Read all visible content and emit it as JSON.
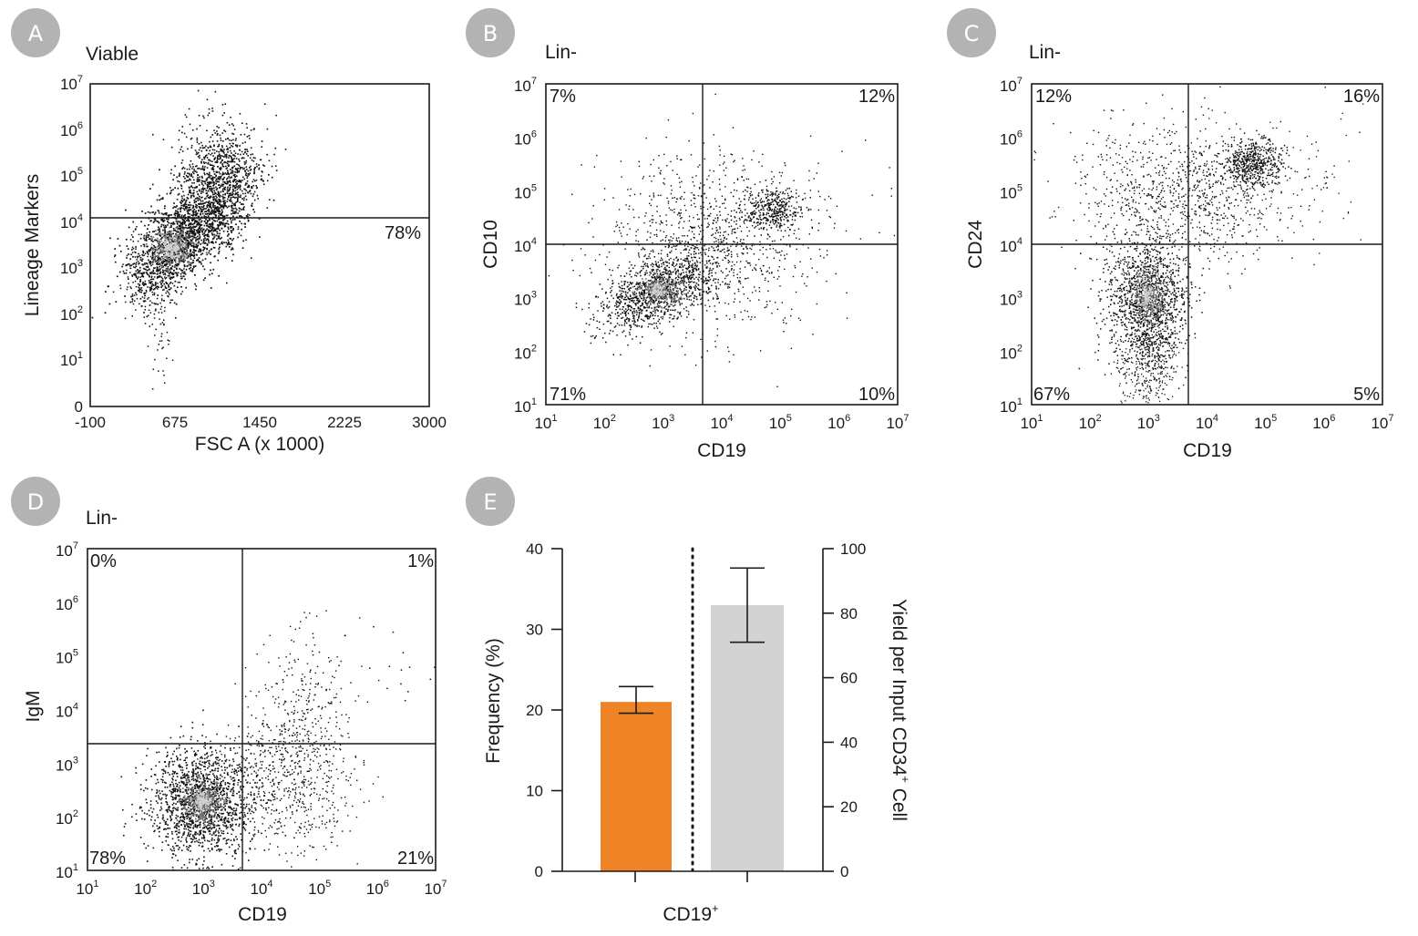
{
  "colors": {
    "badge": "#b3b3b3",
    "axis": "#1a1a1a",
    "orange": "#ee8426",
    "gray": "#d3d3d3"
  },
  "chart_data": [
    {
      "id": "A",
      "type": "scatter",
      "panel_label": "A",
      "title": "Viable",
      "xlabel": "FSC A (x 1000)",
      "ylabel": "Lineage Markers",
      "x_ticks": [
        "-100",
        "675",
        "1450",
        "2225",
        "3000"
      ],
      "y_ticks": [
        {
          "base": "0",
          "exp": ""
        },
        {
          "base": "10",
          "exp": "1"
        },
        {
          "base": "10",
          "exp": "2"
        },
        {
          "base": "10",
          "exp": "3"
        },
        {
          "base": "10",
          "exp": "4"
        },
        {
          "base": "10",
          "exp": "5"
        },
        {
          "base": "10",
          "exp": "6"
        },
        {
          "base": "10",
          "exp": "7"
        }
      ],
      "xlim": [
        -100,
        3000
      ],
      "ylim_log10": [
        0,
        7
      ],
      "gate_y": 4.08,
      "gate_labels": [
        "78%"
      ]
    },
    {
      "id": "B",
      "type": "scatter",
      "panel_label": "B",
      "title": "Lin-",
      "xlabel": "CD19",
      "ylabel": "CD10",
      "ticks": [
        {
          "base": "10",
          "exp": "1"
        },
        {
          "base": "10",
          "exp": "2"
        },
        {
          "base": "10",
          "exp": "3"
        },
        {
          "base": "10",
          "exp": "4"
        },
        {
          "base": "10",
          "exp": "5"
        },
        {
          "base": "10",
          "exp": "6"
        },
        {
          "base": "10",
          "exp": "7"
        }
      ],
      "xlim_log10": [
        1,
        7
      ],
      "ylim_log10": [
        1,
        7
      ],
      "gate_x": 3.65,
      "gate_y": 4.0,
      "quadrants": {
        "upper_left": "7%",
        "upper_right": "12%",
        "lower_left": "71%",
        "lower_right": "10%"
      }
    },
    {
      "id": "C",
      "type": "scatter",
      "panel_label": "C",
      "title": "Lin-",
      "xlabel": "CD19",
      "ylabel": "CD24",
      "ticks": [
        {
          "base": "10",
          "exp": "1"
        },
        {
          "base": "10",
          "exp": "2"
        },
        {
          "base": "10",
          "exp": "3"
        },
        {
          "base": "10",
          "exp": "4"
        },
        {
          "base": "10",
          "exp": "5"
        },
        {
          "base": "10",
          "exp": "6"
        },
        {
          "base": "10",
          "exp": "7"
        }
      ],
      "xlim_log10": [
        1,
        7
      ],
      "ylim_log10": [
        1,
        7
      ],
      "gate_x": 3.65,
      "gate_y": 4.0,
      "quadrants": {
        "upper_left": "12%",
        "upper_right": "16%",
        "lower_left": "67%",
        "lower_right": "5%"
      }
    },
    {
      "id": "D",
      "type": "scatter",
      "panel_label": "D",
      "title": "Lin-",
      "xlabel": "CD19",
      "ylabel": "IgM",
      "ticks": [
        {
          "base": "10",
          "exp": "1"
        },
        {
          "base": "10",
          "exp": "2"
        },
        {
          "base": "10",
          "exp": "3"
        },
        {
          "base": "10",
          "exp": "4"
        },
        {
          "base": "10",
          "exp": "5"
        },
        {
          "base": "10",
          "exp": "6"
        },
        {
          "base": "10",
          "exp": "7"
        }
      ],
      "xlim_log10": [
        1,
        7
      ],
      "ylim_log10": [
        1,
        7
      ],
      "gate_x": 3.65,
      "gate_y": 3.35,
      "quadrants": {
        "upper_left": "0%",
        "upper_right": "1%",
        "lower_left": "78%",
        "lower_right": "21%"
      }
    },
    {
      "id": "E",
      "type": "bar",
      "panel_label": "E",
      "category": "CD19",
      "category_sup": "+",
      "left_axis": {
        "label": "Frequency (%)",
        "ticks": [
          "0",
          "10",
          "20",
          "30",
          "40"
        ],
        "ylim": [
          0,
          40
        ]
      },
      "right_axis": {
        "label": "Yield per Input CD34",
        "label_sup": "+",
        "label_end": " Cell",
        "ticks": [
          "0",
          "20",
          "40",
          "60",
          "80",
          "100"
        ],
        "ylim": [
          0,
          100
        ]
      },
      "series": [
        {
          "name": "Frequency (%)",
          "axis": "left",
          "value": 21,
          "error_low": 19.6,
          "error_high": 22.9
        },
        {
          "name": "Yield per Input CD34+ Cell",
          "axis": "right",
          "value": 82.5,
          "error_low": 71,
          "error_high": 94
        }
      ]
    }
  ]
}
